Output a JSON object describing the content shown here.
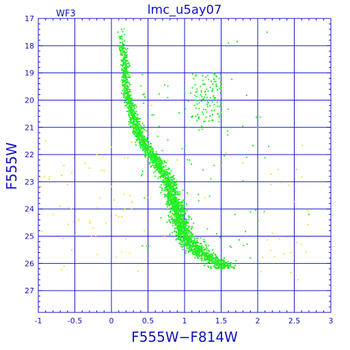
{
  "chart_data": {
    "type": "scatter",
    "title": "lmc_u5ay07",
    "corner_label": "WF3",
    "xlabel": "F555W−F814W",
    "ylabel": "F555W",
    "xlim": [
      -1,
      3
    ],
    "ylim": [
      27.8,
      17
    ],
    "y_inverted": true,
    "grid": true,
    "xticks": [
      -1,
      -0.5,
      0,
      0.5,
      1,
      1.5,
      2,
      2.5,
      3
    ],
    "xtick_labels": [
      "-1",
      "-0.5",
      "0",
      "0.5",
      "1",
      "1.5",
      "2",
      "2.5",
      "3"
    ],
    "yticks": [
      17,
      18,
      19,
      20,
      21,
      22,
      23,
      24,
      25,
      26,
      27
    ],
    "ytick_labels": [
      "17",
      "18",
      "19",
      "20",
      "21",
      "22",
      "23",
      "24",
      "25",
      "26",
      "27"
    ],
    "colors": {
      "axis": "#1010c0",
      "grid": "#1010c0",
      "main": "#22ee22",
      "other": "#f0e030"
    },
    "series": [
      {
        "color": "#22ee22",
        "approximate_population": 2600,
        "ridge": [
          {
            "mag": 17.5,
            "color": 0.13,
            "spread": 0.06
          },
          {
            "mag": 18.5,
            "color": 0.18,
            "spread": 0.07
          },
          {
            "mag": 19.5,
            "color": 0.2,
            "spread": 0.07
          },
          {
            "mag": 20.5,
            "color": 0.28,
            "spread": 0.09
          },
          {
            "mag": 21.5,
            "color": 0.42,
            "spread": 0.12
          },
          {
            "mag": 22.3,
            "color": 0.62,
            "spread": 0.12
          },
          {
            "mag": 23.0,
            "color": 0.78,
            "spread": 0.13
          },
          {
            "mag": 24.0,
            "color": 0.9,
            "spread": 0.14
          },
          {
            "mag": 25.0,
            "color": 1.0,
            "spread": 0.18
          },
          {
            "mag": 25.6,
            "color": 1.2,
            "spread": 0.22
          },
          {
            "mag": 26.0,
            "color": 1.5,
            "spread": 0.22
          }
        ],
        "red_giant_clump": {
          "color": [
            1.1,
            1.5
          ],
          "mag": [
            19.0,
            20.8
          ]
        },
        "points_sample": [
          [
            0.14,
            17.4
          ],
          [
            0.18,
            17.6
          ],
          [
            0.15,
            18.1
          ],
          [
            0.2,
            18.4
          ],
          [
            0.16,
            18.9
          ],
          [
            0.22,
            19.3
          ],
          [
            0.17,
            19.6
          ],
          [
            0.24,
            20.0
          ],
          [
            0.3,
            20.4
          ],
          [
            0.35,
            20.9
          ],
          [
            0.4,
            21.3
          ],
          [
            0.5,
            21.8
          ],
          [
            0.62,
            22.3
          ],
          [
            0.7,
            22.8
          ],
          [
            0.8,
            23.2
          ],
          [
            0.85,
            23.7
          ],
          [
            0.92,
            24.2
          ],
          [
            0.98,
            24.7
          ],
          [
            1.05,
            25.1
          ],
          [
            1.2,
            25.5
          ],
          [
            1.4,
            25.8
          ],
          [
            1.7,
            25.9
          ],
          [
            1.9,
            25.8
          ],
          [
            1.3,
            19.6
          ],
          [
            1.2,
            20.1
          ],
          [
            1.45,
            20.5
          ],
          [
            1.6,
            17.9
          ],
          [
            1.72,
            17.85
          ],
          [
            2.13,
            17.5
          ],
          [
            2.7,
            24.2
          ],
          [
            1.85,
            22.1
          ],
          [
            2.15,
            21.7
          ],
          [
            1.05,
            21.0
          ],
          [
            1.4,
            22.4
          ]
        ]
      },
      {
        "color": "#f0e030",
        "approximate_population": 120,
        "region": {
          "color": [
            -1.0,
            2.7
          ],
          "mag": [
            20.0,
            26.7
          ]
        },
        "points_sample": [
          [
            -0.9,
            21.5
          ],
          [
            -0.85,
            22.9
          ],
          [
            -0.8,
            24.2
          ],
          [
            -0.7,
            23.9
          ],
          [
            -0.65,
            22.4
          ],
          [
            -0.6,
            23.1
          ],
          [
            -0.55,
            24.0
          ],
          [
            -0.45,
            24.4
          ],
          [
            -0.3,
            22.5
          ],
          [
            -0.25,
            24.7
          ],
          [
            -0.15,
            23.6
          ],
          [
            -0.1,
            22.6
          ],
          [
            0.1,
            24.3
          ],
          [
            0.2,
            25.1
          ],
          [
            0.25,
            23.5
          ],
          [
            0.45,
            24.8
          ],
          [
            2.05,
            26.3
          ],
          [
            2.3,
            25.1
          ],
          [
            2.45,
            25.6
          ],
          [
            2.55,
            26.6
          ],
          [
            2.6,
            25.3
          ],
          [
            2.2,
            24.9
          ],
          [
            1.8,
            22.3
          ],
          [
            0.55,
            20.2
          ],
          [
            0.9,
            22.2
          ],
          [
            -0.2,
            22.0
          ]
        ]
      }
    ]
  }
}
